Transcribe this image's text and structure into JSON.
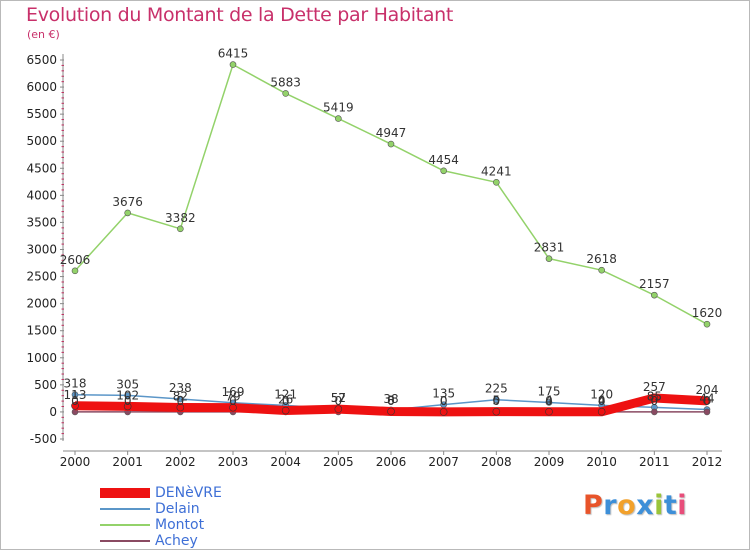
{
  "title": "Evolution du Montant de la Dette par Habitant",
  "unit_label": "(en €)",
  "logo": "Proxiti",
  "chart_data": {
    "type": "line",
    "x": [
      "2000",
      "2001",
      "2002",
      "2003",
      "2004",
      "2005",
      "2006",
      "2007",
      "2008",
      "2009",
      "2010",
      "2011",
      "2012"
    ],
    "y_ticks": [
      "6500",
      "6000",
      "5500",
      "5000",
      "4500",
      "4000",
      "3500",
      "3000",
      "2500",
      "2000",
      "1500",
      "1000",
      "500",
      "0",
      "-500"
    ],
    "ylim": [
      -500,
      6500
    ],
    "grid": false,
    "legend_position": "bottom-left",
    "series": [
      {
        "name": "DENèVRE",
        "color": "#ee1111",
        "values": [
          113,
          102,
          82,
          79,
          26,
          52,
          8,
          0,
          5,
          4,
          4,
          257,
          204
        ],
        "labels": [
          "113",
          "102",
          "82",
          "79",
          "26",
          "52",
          "8",
          "0",
          "5",
          "4",
          "4",
          "257",
          "204"
        ]
      },
      {
        "name": "Delain",
        "color": "#5b96c8",
        "values": [
          318,
          305,
          238,
          169,
          121,
          57,
          38,
          135,
          225,
          175,
          120,
          85,
          44
        ],
        "labels": [
          "318",
          "305",
          "238",
          "169",
          "121",
          "57",
          "38",
          "135",
          "225",
          "175",
          "120",
          "85",
          "44"
        ]
      },
      {
        "name": "Montot",
        "color": "#93d26a",
        "values": [
          2606,
          3676,
          3382,
          6415,
          5883,
          5419,
          4947,
          4454,
          4241,
          2831,
          2618,
          2157,
          1620
        ],
        "labels": [
          "2606",
          "3676",
          "3382",
          "6415",
          "5883",
          "5419",
          "4947",
          "4454",
          "4241",
          "2831",
          "2618",
          "2157",
          "1620"
        ]
      },
      {
        "name": "Achey",
        "color": "#8a4a62",
        "values": [
          0,
          0,
          0,
          0,
          0,
          0,
          0,
          0,
          0,
          0,
          0,
          0,
          0
        ],
        "labels": [
          "0",
          "0",
          "0",
          "0",
          "0",
          "0",
          "0",
          "0",
          "0",
          "0",
          "0",
          "0",
          "0"
        ]
      }
    ]
  }
}
